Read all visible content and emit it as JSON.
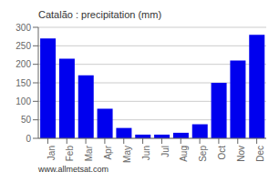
{
  "chart_data": {
    "type": "bar",
    "title": "Catalão : precipitation (mm)",
    "categories": [
      "Jan",
      "Feb",
      "Mar",
      "Apr",
      "May",
      "Jun",
      "Jul",
      "Aug",
      "Sep",
      "Oct",
      "Nov",
      "Dec"
    ],
    "values": [
      270,
      215,
      170,
      80,
      28,
      10,
      10,
      15,
      38,
      150,
      210,
      280
    ],
    "color": "#0000EE",
    "ylim": [
      0,
      300
    ],
    "yticks": [
      0,
      50,
      100,
      150,
      200,
      250,
      300
    ],
    "grid": true,
    "annotations": [
      "www.allmetsat.com"
    ]
  }
}
